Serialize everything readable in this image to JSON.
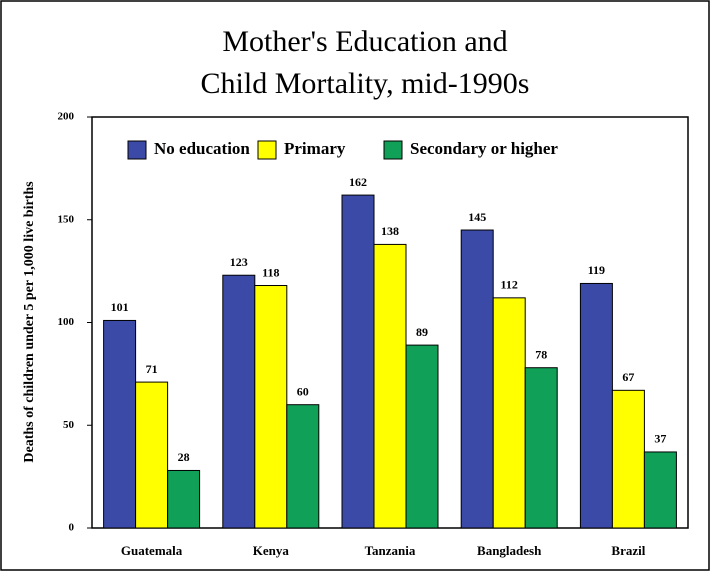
{
  "chart_data": {
    "type": "bar",
    "title": [
      "Mother's Education and",
      "Child Mortality, mid-1990s"
    ],
    "y_label": "Deaths of children under 5 per 1,000 live births",
    "categories": [
      "Guatemala",
      "Kenya",
      "Tanzania",
      "Bangladesh",
      "Brazil"
    ],
    "series": [
      {
        "name": "No education",
        "color": "#3b4aa6",
        "values": [
          101,
          123,
          162,
          145,
          119
        ]
      },
      {
        "name": "Primary",
        "color": "#ffff00",
        "values": [
          71,
          118,
          138,
          112,
          67
        ]
      },
      {
        "name": "Secondary or higher",
        "color": "#10a058",
        "values": [
          28,
          60,
          89,
          78,
          37
        ]
      }
    ],
    "ylim": [
      0,
      200
    ],
    "yticks": [
      0,
      50,
      100,
      150,
      200
    ],
    "legend": "top"
  }
}
